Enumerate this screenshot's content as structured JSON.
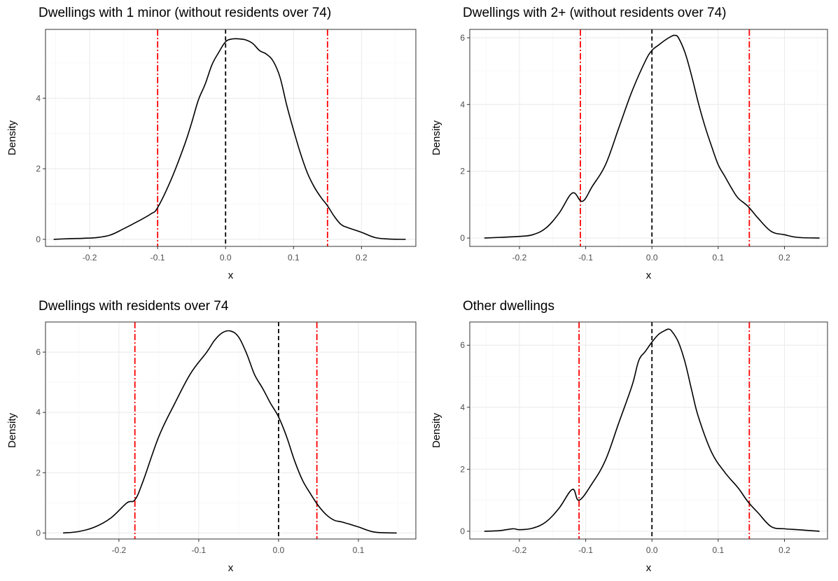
{
  "chart_data": [
    {
      "type": "line",
      "title": "Dwellings with 1 minor (without residents over 74)",
      "xlabel": "x",
      "ylabel": "Density",
      "xlim": [
        -0.265,
        0.28
      ],
      "ylim": [
        -0.2,
        5.95
      ],
      "xticks": [
        -0.2,
        -0.1,
        0.0,
        0.1,
        0.2
      ],
      "xtick_labels": [
        "-0.2",
        "-0.1",
        "0.0",
        "0.1",
        "0.2"
      ],
      "yticks": [
        0,
        2,
        4
      ],
      "ytick_labels": [
        "0",
        "2",
        "4"
      ],
      "grid": true,
      "series": [
        {
          "x": [
            -0.253,
            -0.23,
            -0.21,
            -0.19,
            -0.17,
            -0.15,
            -0.13,
            -0.11,
            -0.1,
            -0.08,
            -0.06,
            -0.05,
            -0.04,
            -0.03,
            -0.02,
            -0.01,
            0.0,
            0.01,
            0.02,
            0.03,
            0.04,
            0.05,
            0.06,
            0.07,
            0.08,
            0.09,
            0.1,
            0.11,
            0.12,
            0.13,
            0.14,
            0.15,
            0.16,
            0.17,
            0.18,
            0.2,
            0.22,
            0.24,
            0.265
          ],
          "y": [
            0.0,
            0.02,
            0.03,
            0.05,
            0.12,
            0.3,
            0.5,
            0.72,
            0.9,
            1.7,
            2.7,
            3.3,
            3.95,
            4.4,
            4.95,
            5.3,
            5.6,
            5.68,
            5.68,
            5.65,
            5.55,
            5.35,
            5.25,
            5.05,
            4.6,
            3.8,
            3.1,
            2.45,
            1.9,
            1.5,
            1.2,
            0.95,
            0.65,
            0.42,
            0.33,
            0.2,
            0.05,
            0.01,
            0.0
          ]
        }
      ],
      "ref_lines": [
        {
          "x": 0.0,
          "color": "#000000",
          "style": "dashed"
        },
        {
          "x": -0.1,
          "color": "#ff0000",
          "style": "dotdash"
        },
        {
          "x": 0.15,
          "color": "#ff0000",
          "style": "dotdash"
        }
      ]
    },
    {
      "type": "line",
      "title": "Dwellings with 2+ (without residents over 74)",
      "xlabel": "x",
      "ylabel": "Density",
      "xlim": [
        -0.275,
        0.265
      ],
      "ylim": [
        -0.25,
        6.25
      ],
      "xticks": [
        -0.2,
        -0.1,
        0.0,
        0.1,
        0.2
      ],
      "xtick_labels": [
        "-0.2",
        "-0.1",
        "0.0",
        "0.1",
        "0.2"
      ],
      "yticks": [
        0,
        2,
        4,
        6
      ],
      "ytick_labels": [
        "0",
        "2",
        "4",
        "6"
      ],
      "grid": true,
      "series": [
        {
          "x": [
            -0.253,
            -0.23,
            -0.2,
            -0.18,
            -0.16,
            -0.14,
            -0.12,
            -0.105,
            -0.09,
            -0.07,
            -0.05,
            -0.03,
            -0.01,
            0.0,
            0.01,
            0.02,
            0.03,
            0.035,
            0.04,
            0.05,
            0.06,
            0.07,
            0.08,
            0.09,
            0.1,
            0.11,
            0.12,
            0.13,
            0.145,
            0.16,
            0.18,
            0.2,
            0.22,
            0.253
          ],
          "y": [
            0.0,
            0.02,
            0.05,
            0.1,
            0.3,
            0.75,
            1.35,
            1.1,
            1.55,
            2.2,
            3.3,
            4.4,
            5.3,
            5.62,
            5.78,
            5.93,
            6.05,
            6.07,
            6.0,
            5.55,
            4.85,
            4.05,
            3.35,
            2.75,
            2.2,
            1.85,
            1.5,
            1.2,
            0.95,
            0.6,
            0.2,
            0.1,
            0.02,
            0.0
          ]
        }
      ],
      "ref_lines": [
        {
          "x": 0.0,
          "color": "#000000",
          "style": "dashed"
        },
        {
          "x": -0.108,
          "color": "#ff0000",
          "style": "dotdash"
        },
        {
          "x": 0.147,
          "color": "#ff0000",
          "style": "dotdash"
        }
      ]
    },
    {
      "type": "line",
      "title": "Dwellings with residents over 74",
      "xlabel": "x",
      "ylabel": "Density",
      "xlim": [
        -0.292,
        0.172
      ],
      "ylim": [
        -0.2,
        7.0
      ],
      "xticks": [
        -0.2,
        -0.1,
        0.0,
        0.1
      ],
      "xtick_labels": [
        "-0.2",
        "-0.1",
        "0.0",
        "0.1"
      ],
      "yticks": [
        0,
        2,
        4,
        6
      ],
      "ytick_labels": [
        "0",
        "2",
        "4",
        "6"
      ],
      "grid": true,
      "series": [
        {
          "x": [
            -0.27,
            -0.25,
            -0.23,
            -0.21,
            -0.19,
            -0.18,
            -0.17,
            -0.15,
            -0.13,
            -0.11,
            -0.09,
            -0.08,
            -0.07,
            -0.06,
            -0.05,
            -0.04,
            -0.03,
            -0.02,
            -0.01,
            0.0,
            0.01,
            0.02,
            0.03,
            0.04,
            0.05,
            0.06,
            0.07,
            0.08,
            0.1,
            0.12,
            0.148
          ],
          "y": [
            0.0,
            0.05,
            0.2,
            0.5,
            1.0,
            1.1,
            1.7,
            3.2,
            4.3,
            5.3,
            6.0,
            6.4,
            6.65,
            6.7,
            6.5,
            5.95,
            5.25,
            4.8,
            4.3,
            3.85,
            3.2,
            2.4,
            1.75,
            1.3,
            0.9,
            0.6,
            0.42,
            0.36,
            0.2,
            0.03,
            0.0
          ]
        }
      ],
      "ref_lines": [
        {
          "x": 0.0,
          "color": "#000000",
          "style": "dashed"
        },
        {
          "x": -0.18,
          "color": "#ff0000",
          "style": "dotdash"
        },
        {
          "x": 0.048,
          "color": "#ff0000",
          "style": "dotdash"
        }
      ]
    },
    {
      "type": "line",
      "title": "Other dwellings",
      "xlabel": "x",
      "ylabel": "Density",
      "xlim": [
        -0.275,
        0.265
      ],
      "ylim": [
        -0.25,
        6.75
      ],
      "xticks": [
        -0.2,
        -0.1,
        0.0,
        0.1,
        0.2
      ],
      "xtick_labels": [
        "-0.2",
        "-0.1",
        "0.0",
        "0.1",
        "0.2"
      ],
      "yticks": [
        0,
        2,
        4,
        6
      ],
      "ytick_labels": [
        "0",
        "2",
        "4",
        "6"
      ],
      "grid": true,
      "series": [
        {
          "x": [
            -0.253,
            -0.23,
            -0.21,
            -0.2,
            -0.18,
            -0.16,
            -0.14,
            -0.12,
            -0.11,
            -0.09,
            -0.07,
            -0.05,
            -0.03,
            -0.02,
            -0.01,
            0.0,
            0.01,
            0.02,
            0.025,
            0.03,
            0.04,
            0.05,
            0.06,
            0.07,
            0.09,
            0.11,
            0.13,
            0.145,
            0.16,
            0.18,
            0.2,
            0.22,
            0.253
          ],
          "y": [
            0.0,
            0.02,
            0.08,
            0.05,
            0.1,
            0.3,
            0.75,
            1.35,
            1.0,
            1.55,
            2.3,
            3.5,
            4.7,
            5.5,
            5.8,
            6.1,
            6.35,
            6.48,
            6.52,
            6.45,
            6.1,
            5.45,
            4.55,
            3.7,
            2.55,
            1.9,
            1.4,
            0.95,
            0.6,
            0.15,
            0.08,
            0.05,
            0.0
          ]
        }
      ],
      "ref_lines": [
        {
          "x": 0.0,
          "color": "#000000",
          "style": "dashed"
        },
        {
          "x": -0.11,
          "color": "#ff0000",
          "style": "dotdash"
        },
        {
          "x": 0.147,
          "color": "#ff0000",
          "style": "dotdash"
        }
      ]
    }
  ]
}
